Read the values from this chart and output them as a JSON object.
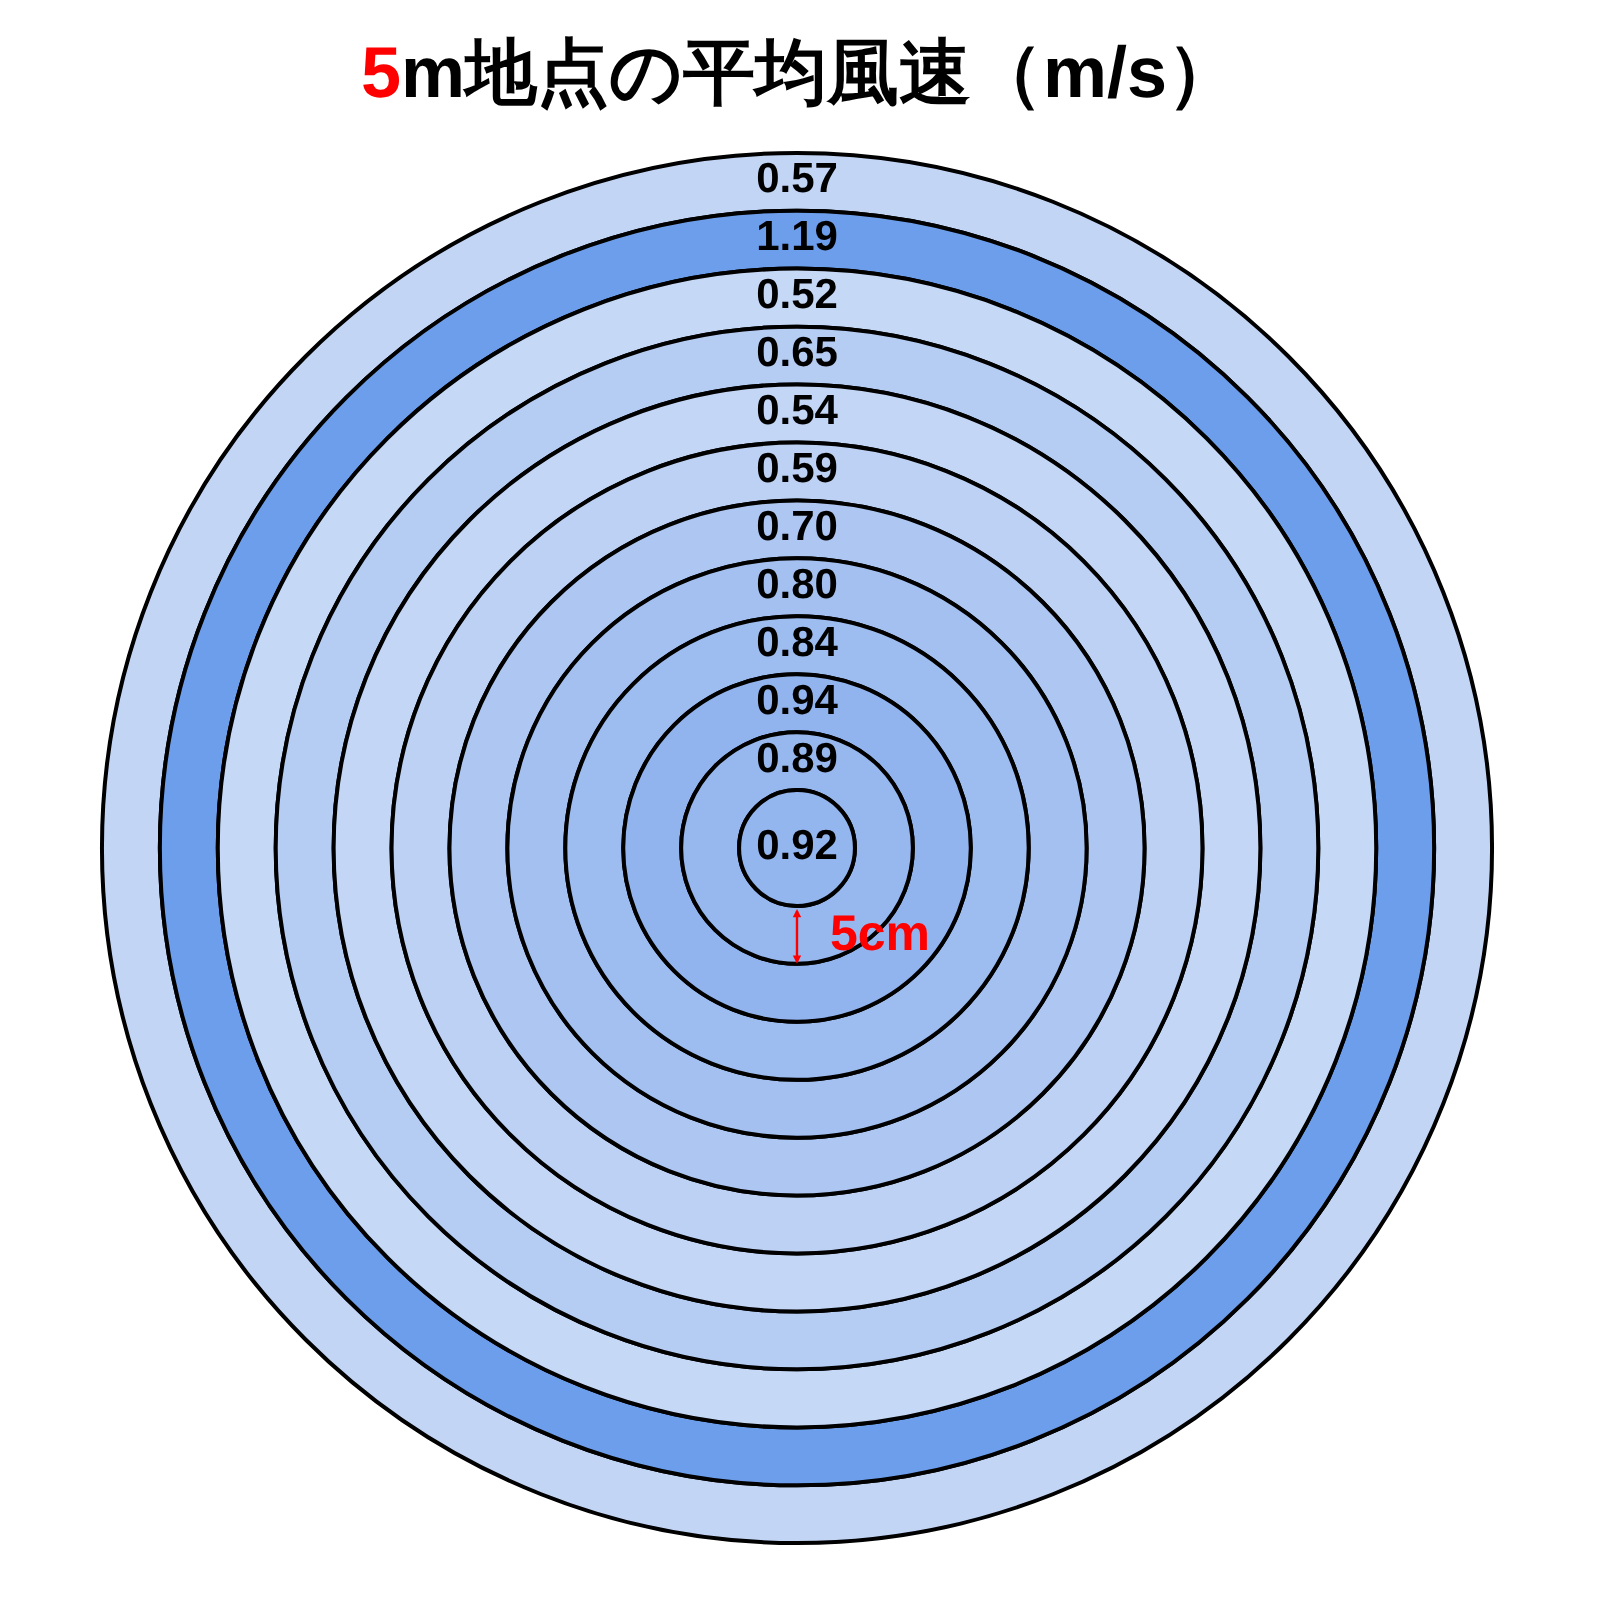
{
  "chart_data": {
    "type": "other",
    "title": "5m地点の平均風速（m/s）",
    "values": [
      0.57,
      1.19,
      0.52,
      0.65,
      0.54,
      0.59,
      0.7,
      0.8,
      0.84,
      0.94,
      0.89,
      0.92
    ],
    "value_labels": [
      "0.57",
      "1.19",
      "0.52",
      "0.65",
      "0.54",
      "0.59",
      "0.70",
      "0.80",
      "0.84",
      "0.94",
      "0.89",
      "0.92"
    ],
    "colors": [
      "#c2d5f5",
      "#6d9eeb",
      "#c5d8f6",
      "#b5ccf3",
      "#c3d6f5",
      "#bdd1f4",
      "#adc7f2",
      "#a3c0f0",
      "#9dbcef",
      "#92b4ee",
      "#97b8ef",
      "#94b6ee"
    ],
    "data_labels": true,
    "annotations": [
      "5cm"
    ]
  }
}
